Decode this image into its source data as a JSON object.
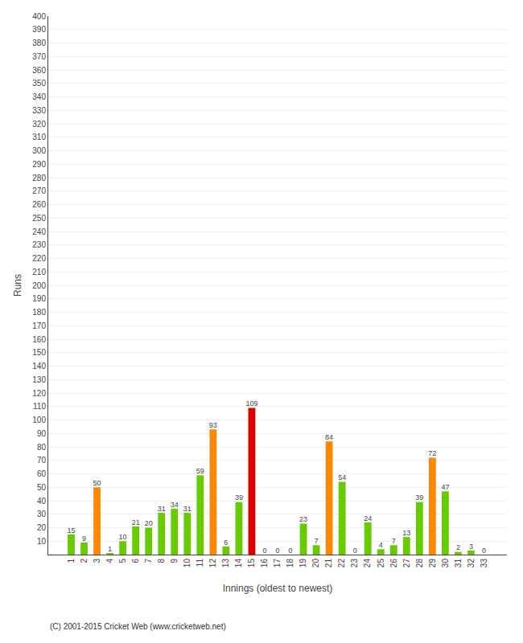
{
  "chart_data": {
    "type": "bar",
    "xlabel": "Innings (oldest to newest)",
    "ylabel": "Runs",
    "annotations": [
      "(C) 2001-2015 Cricket Web (www.cricketweb.net)"
    ],
    "categories": [
      "1",
      "2",
      "3",
      "4",
      "5",
      "6",
      "7",
      "8",
      "9",
      "10",
      "11",
      "12",
      "13",
      "14",
      "15",
      "16",
      "17",
      "18",
      "19",
      "20",
      "21",
      "22",
      "23",
      "24",
      "25",
      "26",
      "27",
      "28",
      "29",
      "30",
      "31",
      "32",
      "33"
    ],
    "values": [
      15,
      9,
      50,
      1,
      10,
      21,
      20,
      31,
      34,
      31,
      59,
      93,
      6,
      39,
      109,
      0,
      0,
      0,
      23,
      7,
      84,
      54,
      0,
      24,
      4,
      7,
      13,
      39,
      72,
      47,
      2,
      3,
      0
    ],
    "colors": [
      "#66cc00",
      "#66cc00",
      "#ff8800",
      "#66cc00",
      "#66cc00",
      "#66cc00",
      "#66cc00",
      "#66cc00",
      "#66cc00",
      "#66cc00",
      "#66cc00",
      "#ff8800",
      "#66cc00",
      "#66cc00",
      "#dd0000",
      "#66cc00",
      "#66cc00",
      "#66cc00",
      "#66cc00",
      "#66cc00",
      "#ff8800",
      "#66cc00",
      "#66cc00",
      "#66cc00",
      "#66cc00",
      "#66cc00",
      "#66cc00",
      "#66cc00",
      "#ff8800",
      "#66cc00",
      "#66cc00",
      "#66cc00",
      "#66cc00"
    ],
    "ylim": [
      0,
      400
    ],
    "yticks": [
      10,
      20,
      30,
      40,
      50,
      60,
      70,
      80,
      90,
      100,
      110,
      120,
      130,
      140,
      150,
      160,
      170,
      180,
      190,
      200,
      210,
      220,
      230,
      240,
      250,
      260,
      270,
      280,
      290,
      300,
      310,
      320,
      330,
      340,
      350,
      360,
      370,
      380,
      390,
      400
    ],
    "grid": true,
    "data_labels": true
  }
}
